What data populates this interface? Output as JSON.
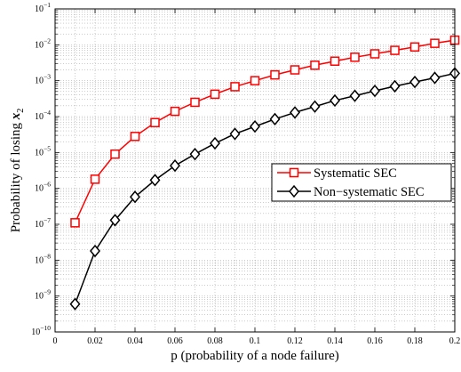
{
  "chart_data": {
    "type": "line",
    "title": "",
    "xlabel": "p (probability of a node failure)",
    "ylabel_main": "Probability of losing ",
    "ylabel_var": "x",
    "ylabel_sub": "2",
    "xlim": [
      0,
      0.2
    ],
    "ylim_log10": [
      -10,
      -1
    ],
    "y_scale": "log",
    "grid": true,
    "legend_position": "center-right",
    "x_ticks": [
      "0",
      "0.02",
      "0.04",
      "0.06",
      "0.08",
      "0.1",
      "0.12",
      "0.14",
      "0.16",
      "0.18",
      "0.2"
    ],
    "y_tick_base": "10",
    "y_tick_exponents": [
      "−10",
      "−9",
      "−8",
      "−7",
      "−6",
      "−5",
      "−4",
      "−3",
      "−2",
      "−1"
    ],
    "x": [
      0.01,
      0.02,
      0.03,
      0.04,
      0.05,
      0.06,
      0.07,
      0.08,
      0.09,
      0.1,
      0.11,
      0.12,
      0.13,
      0.14,
      0.15,
      0.16,
      0.17,
      0.18,
      0.19,
      0.2
    ],
    "series": [
      {
        "name": "Systematic SEC",
        "color": "#ff0000",
        "marker": "square",
        "values": [
          1.1e-07,
          1.8e-06,
          9e-06,
          2.8e-05,
          6.8e-05,
          0.00014,
          0.00025,
          0.00042,
          0.00068,
          0.001,
          0.00145,
          0.002,
          0.0027,
          0.0035,
          0.0045,
          0.0056,
          0.007,
          0.0087,
          0.011,
          0.0135
        ]
      },
      {
        "name": "Non−systematic SEC",
        "color": "#000000",
        "marker": "diamond",
        "values": [
          6e-10,
          1.8e-08,
          1.3e-07,
          5.8e-07,
          1.7e-06,
          4.3e-06,
          9e-06,
          1.8e-05,
          3.3e-05,
          5.3e-05,
          8.5e-05,
          0.00013,
          0.00019,
          0.00028,
          0.00038,
          0.00052,
          0.0007,
          0.00092,
          0.0012,
          0.0016
        ]
      }
    ]
  }
}
